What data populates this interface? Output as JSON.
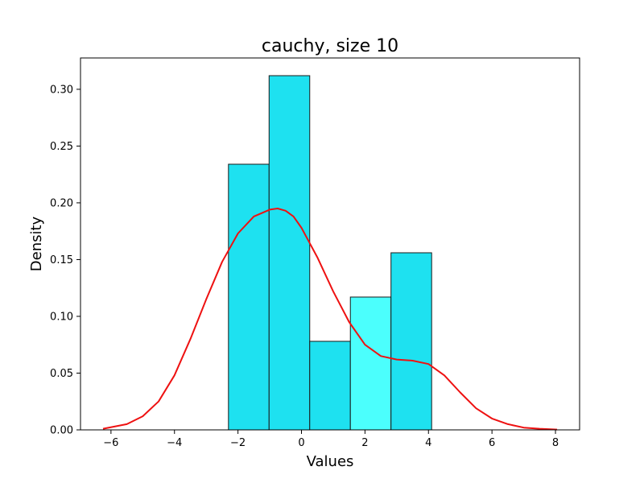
{
  "chart_data": {
    "type": "bar",
    "title": "cauchy, size 10",
    "xlabel": "Values",
    "ylabel": "Density",
    "xlim": [
      -6.96,
      8.76
    ],
    "ylim": [
      0,
      0.3276
    ],
    "xticks": [
      -6,
      -4,
      -2,
      0,
      2,
      4,
      6,
      8
    ],
    "xtick_labels": [
      "−6",
      "−4",
      "−2",
      "0",
      "2",
      "4",
      "6",
      "8"
    ],
    "yticks": [
      0.0,
      0.05,
      0.1,
      0.15,
      0.2,
      0.25,
      0.3
    ],
    "ytick_labels": [
      "0.00",
      "0.05",
      "0.10",
      "0.15",
      "0.20",
      "0.25",
      "0.30"
    ],
    "grid": false,
    "histogram": {
      "bins": [
        {
          "x0": -2.3,
          "x1": -1.02,
          "density": 0.234,
          "color": "#1ee1f0"
        },
        {
          "x0": -1.02,
          "x1": 0.26,
          "density": 0.312,
          "color": "#1ee1f0"
        },
        {
          "x0": 0.26,
          "x1": 1.54,
          "density": 0.078,
          "color": "#1ee1f0"
        },
        {
          "x0": 1.54,
          "x1": 2.82,
          "density": 0.117,
          "color": "#4bfffd"
        },
        {
          "x0": 2.82,
          "x1": 4.1,
          "density": 0.156,
          "color": "#1ee1f0"
        }
      ],
      "edge_color": "#1a1a1a"
    },
    "kde": {
      "color": "#ee1111",
      "x": [
        -6.25,
        -5.5,
        -5.0,
        -4.5,
        -4.0,
        -3.5,
        -3.0,
        -2.5,
        -2.0,
        -1.5,
        -1.0,
        -0.75,
        -0.5,
        -0.25,
        0.0,
        0.5,
        1.0,
        1.5,
        2.0,
        2.5,
        3.0,
        3.5,
        4.0,
        4.5,
        5.0,
        5.5,
        6.0,
        6.5,
        7.0,
        7.5,
        8.05
      ],
      "y": [
        0.001,
        0.005,
        0.012,
        0.025,
        0.048,
        0.08,
        0.115,
        0.148,
        0.173,
        0.188,
        0.194,
        0.195,
        0.193,
        0.188,
        0.178,
        0.152,
        0.122,
        0.095,
        0.075,
        0.065,
        0.062,
        0.061,
        0.058,
        0.048,
        0.033,
        0.019,
        0.01,
        0.005,
        0.002,
        0.001,
        0.0003
      ]
    }
  }
}
